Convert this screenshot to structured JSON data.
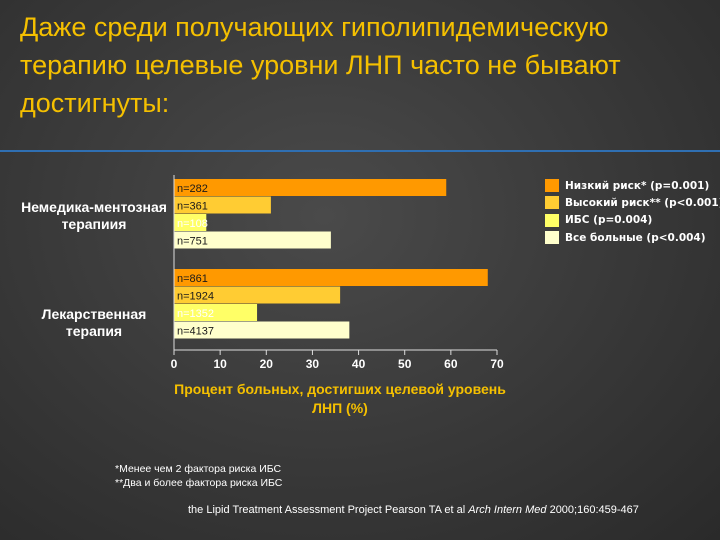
{
  "title": "Даже среди получающих гиполипидемическую терапию целевые уровни ЛНП часто не бывают достигнуты:",
  "groups": [
    {
      "label": "Немедика-ментозная терапиия"
    },
    {
      "label": "Лекарственная терапия"
    }
  ],
  "colors": {
    "title": "#f5c000",
    "rule": "#2f6fb2",
    "series": [
      "#ff9900",
      "#ffcc33",
      "#ffff66",
      "#ffffcc"
    ]
  },
  "chart_data": {
    "type": "bar",
    "orientation": "horizontal",
    "categories": [
      "Немедика-ментозная терапиия",
      "Лекарственная терапия"
    ],
    "series": [
      {
        "name": "Низкий риск* (p=0.001)",
        "values": [
          59,
          68
        ],
        "n_labels": [
          "n=282",
          "n=861"
        ]
      },
      {
        "name": "Высокий риск** (p<0.001)",
        "values": [
          21,
          36
        ],
        "n_labels": [
          "n=361",
          "n=1924"
        ]
      },
      {
        "name": "ИБС (p=0.004)",
        "values": [
          7,
          18
        ],
        "n_labels": [
          "n=108",
          "n=1352"
        ]
      },
      {
        "name": "Все больные (p<0.004)",
        "values": [
          34,
          38
        ],
        "n_labels": [
          "n=751",
          "n=4137"
        ]
      }
    ],
    "xlim": [
      0,
      70
    ],
    "xticks": [
      "0",
      "10",
      "20",
      "30",
      "40",
      "50",
      "60",
      "70"
    ],
    "xlabel": "Процент больных, достигших целевой уровень ЛНП (%)",
    "legend_position": "top-right"
  },
  "footnotes": [
    "*Менее чем 2 фактора риска ИБС",
    "**Два и более фактора риска ИБС"
  ],
  "source": {
    "prefix": "the Lipid Treatment Assessment Project Pearson TA et al ",
    "journal": "Arch Intern Med",
    "suffix": " 2000;160:459-467"
  }
}
